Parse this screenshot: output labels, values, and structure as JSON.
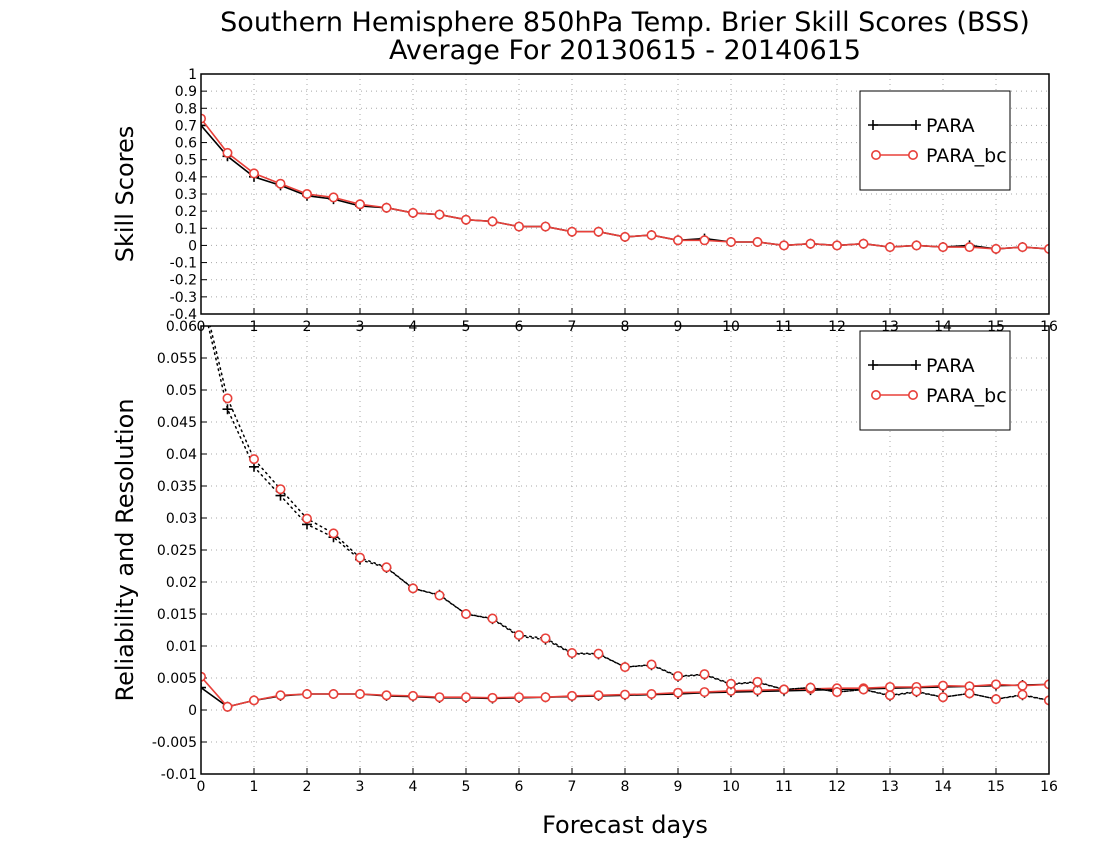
{
  "figure": {
    "title_line1": "Southern Hemisphere 850hPa Temp. Brier Skill Scores (BSS)",
    "title_line2": "Average For 20130615 - 20140615",
    "xlabel": "Forecast days"
  },
  "colors": {
    "PARA": "#000000",
    "PARA_bc": "#e8403a"
  },
  "chart_data": [
    {
      "type": "line",
      "ylabel": "Skill Scores",
      "xlim": [
        0,
        16
      ],
      "ylim": [
        -0.4,
        1
      ],
      "x_ticks": [
        0,
        1,
        2,
        3,
        4,
        5,
        6,
        7,
        8,
        9,
        10,
        11,
        12,
        13,
        14,
        15,
        16
      ],
      "x_tick_labels": [
        "0",
        "1",
        "2",
        "3",
        "4",
        "5",
        "6",
        "7",
        "8",
        "9",
        "10",
        "11",
        "12",
        "13",
        "14",
        "15",
        "16"
      ],
      "y_ticks": [
        -0.4,
        -0.3,
        -0.2,
        -0.1,
        0,
        0.1,
        0.2,
        0.3,
        0.4,
        0.5,
        0.6,
        0.7,
        0.8,
        0.9,
        1
      ],
      "y_tick_labels": [
        "-0.4",
        "-0.3",
        "-0.2",
        "-0.1",
        "0",
        "0.1",
        "0.2",
        "0.3",
        "0.4",
        "0.5",
        "0.6",
        "0.7",
        "0.8",
        "0.9",
        "1"
      ],
      "grid": true,
      "legend": "top-right",
      "x": [
        0,
        0.5,
        1,
        1.5,
        2,
        2.5,
        3,
        3.5,
        4,
        4.5,
        5,
        5.5,
        6,
        6.5,
        7,
        7.5,
        8,
        8.5,
        9,
        9.5,
        10,
        10.5,
        11,
        11.5,
        12,
        12.5,
        13,
        13.5,
        14,
        14.5,
        15,
        15.5,
        16
      ],
      "series": [
        {
          "name": "PARA",
          "marker": "plus",
          "line": "solid",
          "values": [
            0.7,
            0.52,
            0.4,
            0.35,
            0.29,
            0.27,
            0.23,
            0.22,
            0.19,
            0.18,
            0.15,
            0.14,
            0.11,
            0.11,
            0.08,
            0.08,
            0.05,
            0.06,
            0.03,
            0.04,
            0.02,
            0.02,
            0.0,
            0.01,
            0.0,
            0.01,
            -0.01,
            0.0,
            -0.01,
            0.0,
            -0.02,
            -0.01,
            -0.02
          ]
        },
        {
          "name": "PARA_bc",
          "marker": "circle",
          "line": "solid",
          "values": [
            0.74,
            0.54,
            0.42,
            0.36,
            0.3,
            0.28,
            0.24,
            0.22,
            0.19,
            0.18,
            0.15,
            0.14,
            0.11,
            0.11,
            0.08,
            0.08,
            0.05,
            0.06,
            0.03,
            0.03,
            0.02,
            0.02,
            0.0,
            0.01,
            0.0,
            0.01,
            -0.01,
            0.0,
            -0.01,
            -0.01,
            -0.02,
            -0.01,
            -0.02
          ]
        }
      ]
    },
    {
      "type": "line",
      "ylabel": "Reliability and Resolution",
      "xlim": [
        0,
        16
      ],
      "ylim": [
        -0.01,
        0.06
      ],
      "x_ticks": [
        0,
        1,
        2,
        3,
        4,
        5,
        6,
        7,
        8,
        9,
        10,
        11,
        12,
        13,
        14,
        15,
        16
      ],
      "x_tick_labels": [
        "0",
        "1",
        "2",
        "3",
        "4",
        "5",
        "6",
        "7",
        "8",
        "9",
        "10",
        "11",
        "12",
        "13",
        "14",
        "15",
        "16"
      ],
      "y_ticks": [
        -0.01,
        -0.005,
        0,
        0.005,
        0.01,
        0.015,
        0.02,
        0.025,
        0.03,
        0.035,
        0.04,
        0.045,
        0.05,
        0.055,
        0.06
      ],
      "y_tick_labels": [
        "-0.01",
        "-0.005",
        "0",
        "0.005",
        "0.01",
        "0.015",
        "0.02",
        "0.025",
        "0.03",
        "0.035",
        "0.04",
        "0.045",
        "0.05",
        "0.055",
        "0.06"
      ],
      "grid": true,
      "legend": "top-right",
      "x": [
        0,
        0.5,
        1,
        1.5,
        2,
        2.5,
        3,
        3.5,
        4,
        4.5,
        5,
        5.5,
        6,
        6.5,
        7,
        7.5,
        8,
        8.5,
        9,
        9.5,
        10,
        10.5,
        11,
        11.5,
        12,
        12.5,
        13,
        13.5,
        14,
        14.5,
        15,
        15.5,
        16
      ],
      "series": [
        {
          "name": "PARA",
          "marker": "plus",
          "line": "solid",
          "values": [
            0.0035,
            0.0005,
            0.0015,
            0.0022,
            0.0025,
            0.0025,
            0.0025,
            0.0022,
            0.0021,
            0.0019,
            0.0019,
            0.0018,
            0.0019,
            0.002,
            0.0021,
            0.0022,
            0.0023,
            0.0024,
            0.0025,
            0.0027,
            0.0028,
            0.0029,
            0.003,
            0.0031,
            0.0032,
            0.0033,
            0.0034,
            0.0035,
            0.0036,
            0.0037,
            0.0038,
            0.0039,
            0.004
          ]
        },
        {
          "name": "PARA_bc",
          "marker": "circle",
          "line": "solid",
          "values": [
            0.0052,
            0.0005,
            0.0015,
            0.0023,
            0.0025,
            0.0025,
            0.0025,
            0.0023,
            0.0022,
            0.002,
            0.002,
            0.0019,
            0.002,
            0.002,
            0.0022,
            0.0023,
            0.0024,
            0.0025,
            0.0027,
            0.0028,
            0.003,
            0.0031,
            0.0032,
            0.0033,
            0.0034,
            0.0034,
            0.0036,
            0.0036,
            0.0038,
            0.0037,
            0.004,
            0.0038,
            0.004
          ]
        },
        {
          "name": "PARA",
          "marker": "plus",
          "line": "dotted",
          "values": [
            0.065,
            0.047,
            0.038,
            0.0335,
            0.029,
            0.027,
            0.0235,
            0.0222,
            0.019,
            0.018,
            0.015,
            0.0142,
            0.0115,
            0.011,
            0.0088,
            0.0087,
            0.0067,
            0.007,
            0.0052,
            0.0055,
            0.004,
            0.0043,
            0.0032,
            0.0035,
            0.0028,
            0.0032,
            0.0022,
            0.0028,
            0.002,
            0.0026,
            0.0017,
            0.0023,
            0.0015
          ]
        },
        {
          "name": "PARA_bc",
          "marker": "circle",
          "line": "dotted",
          "values": [
            0.066,
            0.0487,
            0.0392,
            0.0345,
            0.0299,
            0.0276,
            0.0238,
            0.0223,
            0.019,
            0.0179,
            0.015,
            0.0143,
            0.0117,
            0.0112,
            0.0089,
            0.0088,
            0.0067,
            0.0071,
            0.0053,
            0.0056,
            0.0041,
            0.0044,
            0.0032,
            0.0035,
            0.0028,
            0.0032,
            0.0023,
            0.0029,
            0.002,
            0.0026,
            0.0017,
            0.0024,
            0.0015
          ]
        }
      ]
    }
  ]
}
